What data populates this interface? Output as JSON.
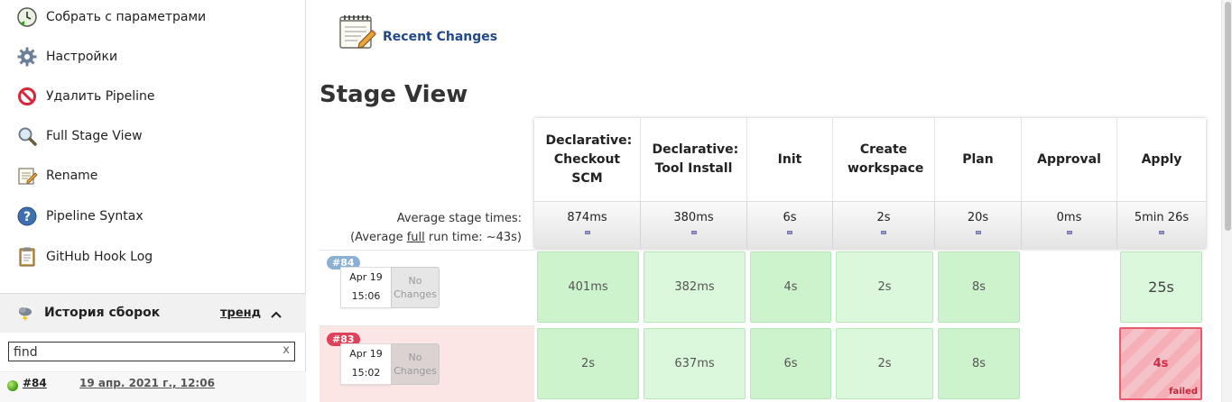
{
  "sidebar": {
    "items": [
      {
        "label": "Собрать с параметрами",
        "icon": "clock-build-icon"
      },
      {
        "label": "Настройки",
        "icon": "gear-icon"
      },
      {
        "label": "Удалить Pipeline",
        "icon": "no-entry-icon"
      },
      {
        "label": "Full Stage View",
        "icon": "magnifier-icon"
      },
      {
        "label": "Rename",
        "icon": "notepad-icon"
      },
      {
        "label": "Pipeline Syntax",
        "icon": "help-icon"
      },
      {
        "label": "GitHub Hook Log",
        "icon": "clipboard-icon"
      }
    ],
    "history": {
      "title": "История сборок",
      "trend": "тренд",
      "find_value": "find",
      "clear": "x",
      "builds": [
        {
          "number": "#84",
          "date": "19 апр. 2021 г., 12:06",
          "status_color": "#4caf1c"
        }
      ]
    }
  },
  "main": {
    "recent_changes": "Recent Changes",
    "stage_view_title": "Stage View",
    "avg_label_line1": "Average stage times:",
    "avg_label_prefix": "(Average ",
    "avg_label_full": "full",
    "avg_label_suffix": " run time: ~43s)",
    "stages": [
      {
        "name": "Declarative: Checkout SCM",
        "avg": "874ms"
      },
      {
        "name": "Declarative: Tool Install",
        "avg": "380ms"
      },
      {
        "name": "Init",
        "avg": "6s"
      },
      {
        "name": "Create workspace",
        "avg": "2s"
      },
      {
        "name": "Plan",
        "avg": "20s"
      },
      {
        "name": "Approval",
        "avg": "0ms"
      },
      {
        "name": "Apply",
        "avg": "5min 26s"
      }
    ],
    "runs": [
      {
        "badge": "#84",
        "badge_color": "#8ab0d4",
        "month_day": "Apr 19",
        "time": "15:06",
        "changes": "No Changes",
        "cells": [
          "401ms",
          "382ms",
          "4s",
          "2s",
          "8s",
          "",
          "25s"
        ]
      },
      {
        "badge": "#83",
        "badge_color": "#e0415a",
        "month_day": "Apr 19",
        "time": "15:02",
        "changes": "No Changes",
        "cells": [
          "2s",
          "637ms",
          "6s",
          "2s",
          "8s",
          "",
          "4s"
        ],
        "failed_label": "failed"
      }
    ]
  },
  "colors": {
    "success_cell": "#dcf8dc",
    "failed_cell": "#f6aeb7",
    "link": "#204a87"
  }
}
